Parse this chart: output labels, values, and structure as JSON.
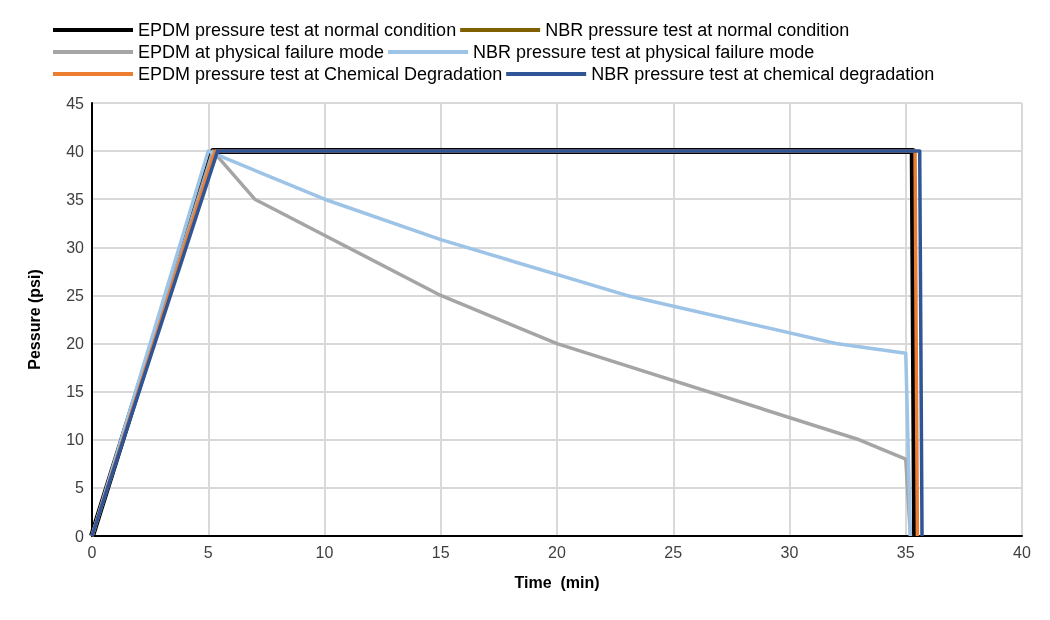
{
  "chart_data": {
    "type": "line",
    "xlabel": "Time  (min)",
    "ylabel": "Pessure (psi)",
    "xlim": [
      0,
      40
    ],
    "xticks": [
      0,
      5,
      10,
      15,
      20,
      25,
      30,
      35,
      40
    ],
    "ylim": [
      0,
      45
    ],
    "yticks": [
      0,
      5,
      10,
      15,
      20,
      25,
      30,
      35,
      40,
      45
    ],
    "grid": true,
    "legend": "top",
    "marker": "none",
    "line_style": "solid",
    "series": [
      {
        "name": "EPDM pressure test at normal condition",
        "color": "#000000",
        "x": [
          0,
          5.2,
          35.3,
          35.4
        ],
        "values": [
          0,
          40,
          40,
          0
        ]
      },
      {
        "name": "NBR pressure test at normal condition",
        "color": "#7f6000"
      },
      {
        "name": "EPDM at physical failure mode",
        "color": "#a5a5a5",
        "x": [
          0,
          5.2,
          7,
          15,
          20,
          33,
          35,
          35.2
        ],
        "values": [
          0,
          40,
          35,
          25,
          20,
          10,
          8,
          0
        ]
      },
      {
        "name": "NBR pressure test at physical failure mode",
        "color": "#9dc3e6",
        "x": [
          0,
          5,
          10,
          15,
          23,
          32,
          35,
          35.2
        ],
        "values": [
          0,
          40,
          35,
          30.8,
          25,
          20,
          19,
          0
        ]
      },
      {
        "name": "EPDM pressure test at Chemical Degradation",
        "color": "#ed7d31",
        "x": [
          0,
          5.3,
          35.4,
          35.5
        ],
        "values": [
          0,
          40,
          40,
          0
        ]
      },
      {
        "name": "NBR pressure test at chemical degradation",
        "color": "#2f5597",
        "x": [
          0,
          5.4,
          35.6,
          35.7
        ],
        "values": [
          0,
          40,
          40,
          0
        ]
      }
    ]
  }
}
